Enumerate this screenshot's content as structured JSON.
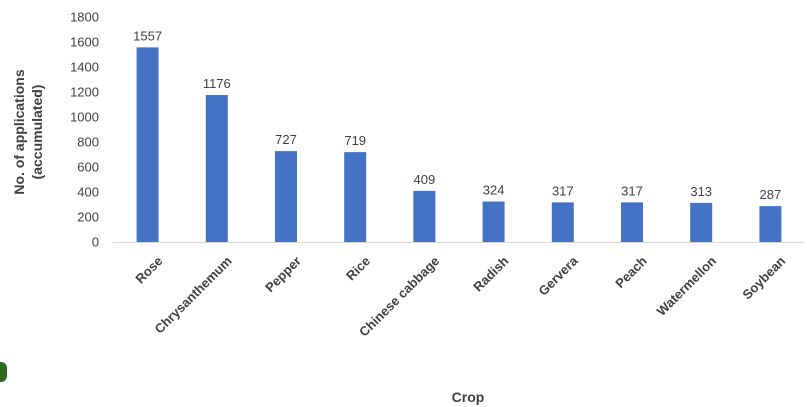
{
  "chart_data": {
    "type": "bar",
    "categories": [
      "Rose",
      "Chrysanthemum",
      "Pepper",
      "Rice",
      "Chinese cabbage",
      "Radish",
      "Gervera",
      "Peach",
      "Watermellon",
      "Soybean"
    ],
    "series": [
      {
        "values": [
          1557,
          1176,
          727,
          719,
          409,
          324,
          317,
          317,
          313,
          287
        ],
        "color": "#4472C4"
      }
    ],
    "data_labels": [
      "1557",
      "1176",
      "727",
      "719",
      "409",
      "324",
      "317",
      "317",
      "313",
      "287"
    ],
    "xlabel": "Crop",
    "ylabel_lines": [
      "No. of applications",
      "(accumulated)"
    ],
    "ylim": [
      0,
      1800
    ],
    "yticks": [
      0,
      200,
      400,
      600,
      800,
      1000,
      1200,
      1400,
      1600,
      1800
    ],
    "grid": false,
    "legend": "none",
    "colors": {
      "bar": "#4472C4",
      "axis": "#D9D9D9",
      "text": "#404040"
    }
  }
}
